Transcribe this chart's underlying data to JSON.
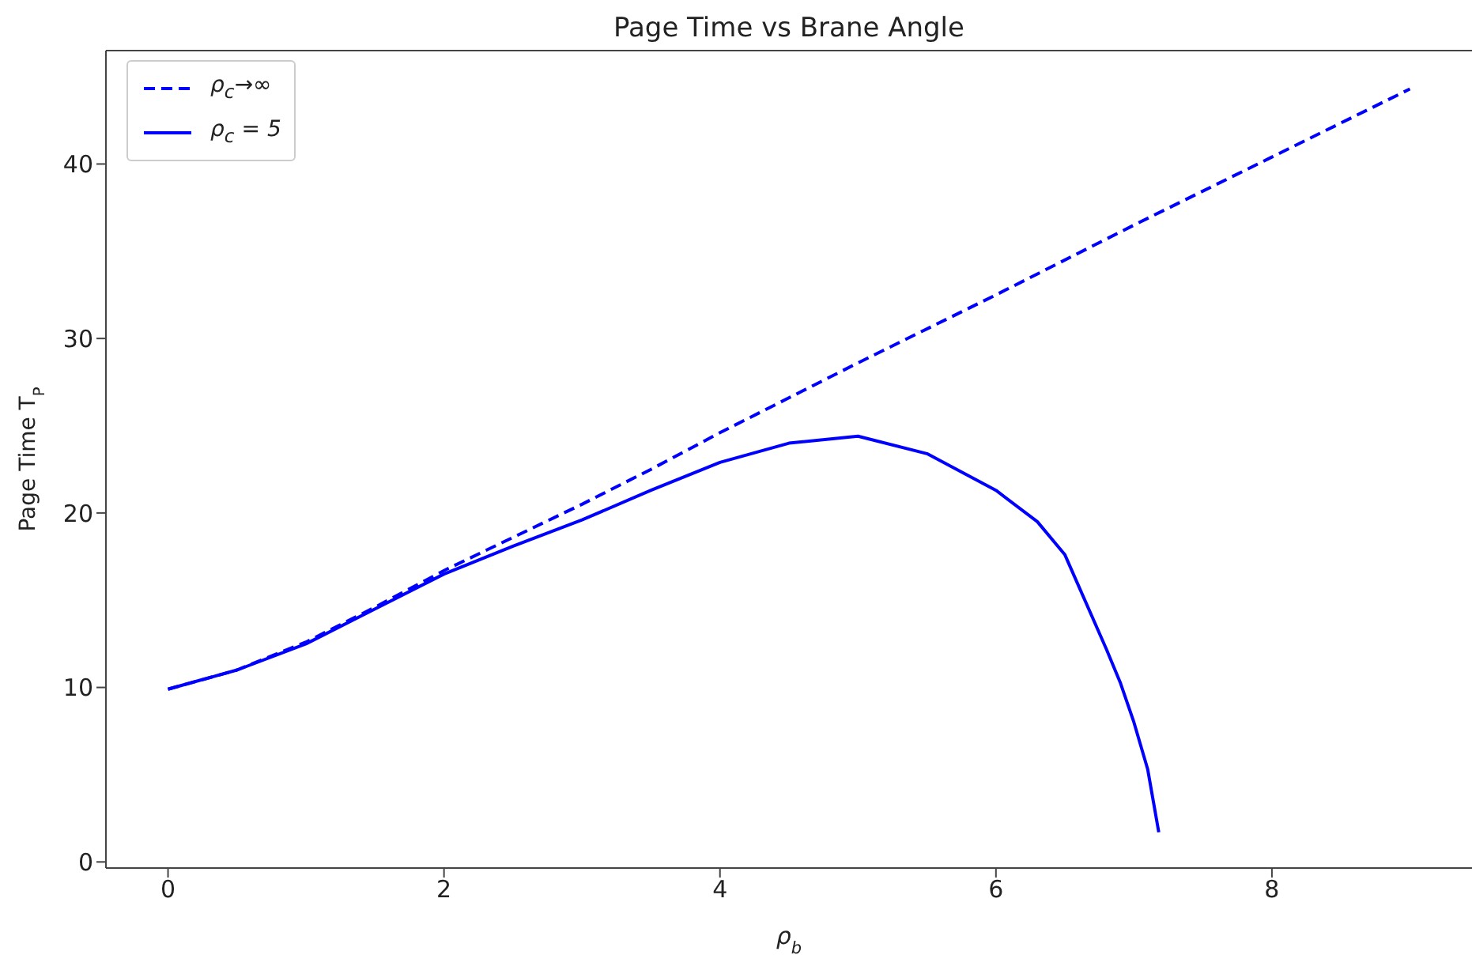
{
  "chart_data": {
    "type": "line",
    "title": "Page Time vs Brane Angle",
    "xlabel": "ρ$_{b}$",
    "ylabel": "Page Time T$_{P}$",
    "xlim": [
      -0.45,
      9.45
    ],
    "xticks": [
      0,
      2,
      4,
      6,
      8
    ],
    "ylim": [
      -0.35,
      46.5
    ],
    "yticks": [
      0,
      10,
      20,
      30,
      40
    ],
    "grid": false,
    "legend": "top left",
    "series": [
      {
        "name": "ρ$_{c}$→∞",
        "color": "#0000ff",
        "line_style": "dashed",
        "x": [
          0,
          0.5,
          1,
          1.5,
          2,
          2.5,
          3,
          3.5,
          4,
          5,
          6,
          7,
          8,
          9
        ],
        "values": [
          9.9,
          11.0,
          12.6,
          14.6,
          16.7,
          18.6,
          20.5,
          22.5,
          24.6,
          28.6,
          32.5,
          36.5,
          40.4,
          44.3
        ]
      },
      {
        "name": "ρ$_{c}$ = 5",
        "color": "#0000ff",
        "line_style": "solid",
        "x": [
          0,
          0.5,
          1,
          1.5,
          2,
          2.5,
          3,
          3.5,
          4,
          4.5,
          5,
          5.5,
          6,
          6.3,
          6.5,
          6.8,
          6.9,
          7.0,
          7.1,
          7.18
        ],
        "values": [
          9.9,
          11.0,
          12.5,
          14.5,
          16.5,
          18.1,
          19.6,
          21.3,
          22.9,
          24.0,
          24.4,
          23.4,
          21.3,
          19.5,
          17.6,
          12.2,
          10.3,
          8.0,
          5.3,
          1.7
        ]
      }
    ]
  }
}
